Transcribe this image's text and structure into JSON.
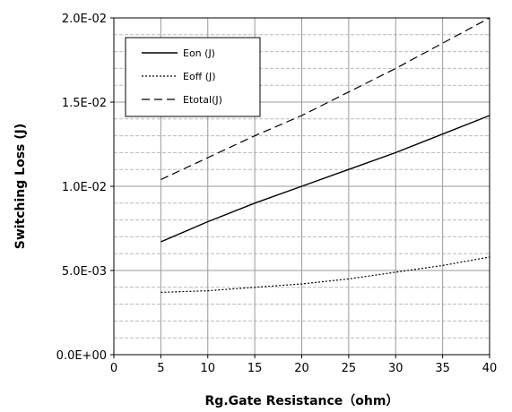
{
  "chart_data": {
    "type": "line",
    "title": "",
    "xlabel": "Rg.Gate Resistance（ohm）",
    "ylabel": "Switching Loss (J)",
    "xlim": [
      0,
      40
    ],
    "ylim": [
      0,
      0.02
    ],
    "x_ticks": [
      "0",
      "5",
      "10",
      "15",
      "20",
      "25",
      "30",
      "35",
      "40"
    ],
    "y_ticks": [
      "0.0E+00",
      "5.0E-03",
      "1.0E-02",
      "1.5E-02",
      "2.0E-02"
    ],
    "grid": true,
    "legend_position": "top-left",
    "x": [
      5,
      10,
      15,
      20,
      25,
      30,
      35,
      40
    ],
    "series": [
      {
        "name": "Eon (J)",
        "style": "solid",
        "values": [
          0.0067,
          0.0079,
          0.009,
          0.01,
          0.011,
          0.012,
          0.0131,
          0.0142
        ]
      },
      {
        "name": "Eoff (J)",
        "style": "dotted",
        "values": [
          0.0037,
          0.0038,
          0.004,
          0.0042,
          0.0045,
          0.0049,
          0.0053,
          0.0058
        ]
      },
      {
        "name": "Etotal(J)",
        "style": "dashed",
        "values": [
          0.0104,
          0.0117,
          0.013,
          0.0142,
          0.0156,
          0.017,
          0.0185,
          0.02
        ]
      }
    ]
  }
}
